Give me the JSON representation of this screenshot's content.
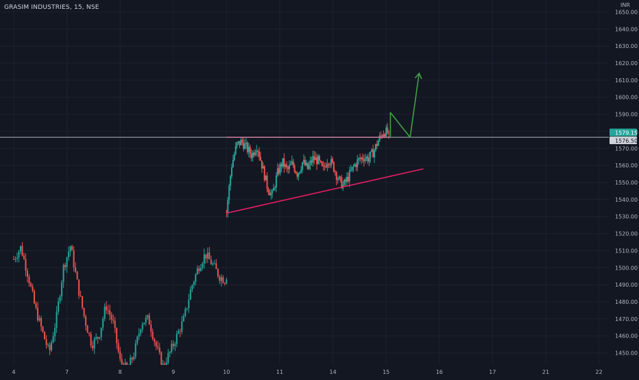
{
  "header": {
    "title": "GRASIM INDUSTRIES, 15, NSE"
  },
  "chart_data": {
    "type": "candlestick",
    "currency": "INR",
    "price_axis": {
      "min": 1443,
      "max": 1657,
      "ticks": [
        1450,
        1460,
        1470,
        1480,
        1490,
        1500,
        1510,
        1520,
        1530,
        1540,
        1550,
        1560,
        1570,
        1580,
        1590,
        1600,
        1610,
        1620,
        1630,
        1640,
        1650
      ],
      "tick_labels": [
        "1450.00",
        "1460.00",
        "1470.00",
        "1480.00",
        "1490.00",
        "1500.00",
        "1510.00",
        "1520.00",
        "1530.00",
        "1540.00",
        "1550.00",
        "1560.00",
        "1570.00",
        "1580.00",
        "1590.00",
        "1600.00",
        "1610.00",
        "1620.00",
        "1630.00",
        "1640.00",
        "1650.00"
      ]
    },
    "time_axis": {
      "labels": [
        "4",
        "7",
        "8",
        "9",
        "10",
        "11",
        "14",
        "15",
        "16",
        "17",
        "21",
        "22"
      ],
      "grid": true
    },
    "last_price": "1579.15",
    "crosshair_price": "1576.50",
    "horizontal_line_price": 1576.5,
    "segments": [
      {
        "name": "session-4-9",
        "t_start": 0.0,
        "t_end": 4.0,
        "open": 1505,
        "close": 1493,
        "path": [
          1505,
          1512,
          1496,
          1477,
          1463,
          1450,
          1470,
          1500,
          1513,
          1490,
          1470,
          1455,
          1460,
          1478,
          1468,
          1445,
          1440,
          1450,
          1468,
          1470,
          1455,
          1442,
          1450,
          1460,
          1470,
          1488,
          1500,
          1508,
          1502,
          1495,
          1492
        ]
      },
      {
        "name": "session-10-15",
        "t_start": 4.0,
        "t_end": 7.05,
        "open": 1533,
        "close": 1579,
        "path": [
          1533,
          1560,
          1572,
          1574,
          1570,
          1566,
          1572,
          1560,
          1548,
          1542,
          1555,
          1562,
          1557,
          1561,
          1555,
          1562,
          1558,
          1564,
          1563,
          1557,
          1564,
          1560,
          1552,
          1548,
          1553,
          1559,
          1563,
          1565,
          1564,
          1568,
          1575,
          1580,
          1579
        ]
      }
    ],
    "drawings": {
      "resistance_price": 1576.5,
      "support_line": {
        "from": {
          "t": 4.0,
          "price": 1532
        },
        "to": {
          "t": 7.7,
          "price": 1558
        }
      },
      "projection": [
        {
          "t": 7.08,
          "price": 1576.5
        },
        {
          "t": 7.08,
          "price": 1591
        },
        {
          "t": 7.45,
          "price": 1576.5
        },
        {
          "t": 7.62,
          "price": 1614
        }
      ]
    },
    "colors": {
      "background": "#131722",
      "grid": "#1e222d",
      "up": "#26a69a",
      "down": "#ef5350",
      "resistance": "#e91e63",
      "support": "#e91e63",
      "projection": "#43a047",
      "hline": "#b2b5be",
      "last_price_bg": "#26a69a",
      "crosshair_bg": "#d1d4dc",
      "axis_text": "#b2b5be"
    }
  }
}
